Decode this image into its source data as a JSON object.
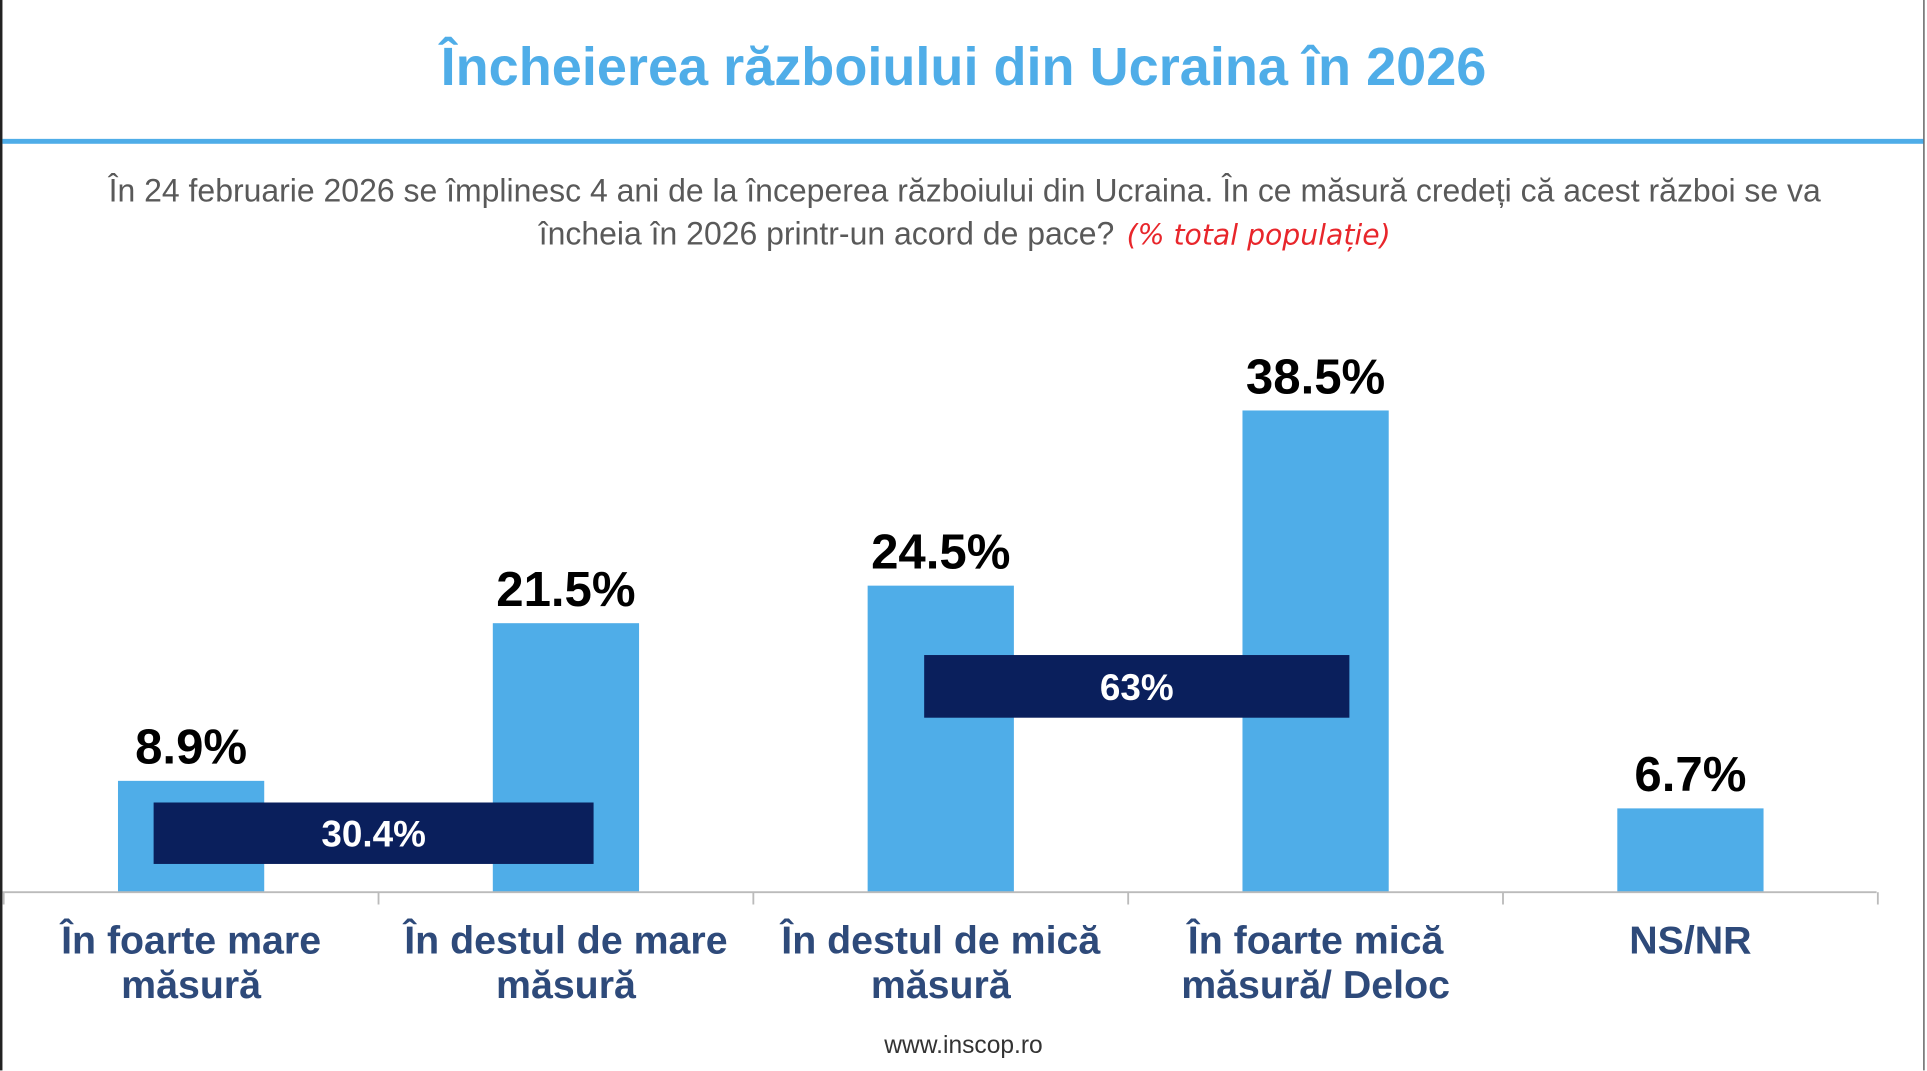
{
  "title": "Încheierea războiului din Ucraina în 2026",
  "subtitle": "În 24 februarie 2026 se împlinesc 4 ani de la începerea războiului din Ucraina. În ce măsură credeți că acest război se va încheia în 2026 printr-un acord de pace?",
  "note": "(% total populație)",
  "footer": "www.inscop.ro",
  "colors": {
    "bar": "#4FADE8",
    "group_box": "#0A1F5C",
    "title": "#4FADE8",
    "category_text": "#2E4A7A",
    "note": "#E8262B"
  },
  "chart_data": {
    "type": "bar",
    "categories": [
      [
        "În foarte mare",
        "măsură"
      ],
      [
        "În destul de mare",
        "măsură"
      ],
      [
        "În destul de mică",
        "măsură"
      ],
      [
        "În foarte mică",
        "măsură/ Deloc"
      ],
      [
        "NS/NR"
      ]
    ],
    "values": [
      8.9,
      21.5,
      24.5,
      38.5,
      6.7
    ],
    "value_labels": [
      "8.9%",
      "21.5%",
      "24.5%",
      "38.5%",
      "6.7%"
    ],
    "groups": [
      {
        "label": "30.4%",
        "value": 30.4,
        "covers": [
          0,
          1
        ]
      },
      {
        "label": "63%",
        "value": 63,
        "covers": [
          2,
          3
        ]
      }
    ],
    "ylim": [
      0,
      40
    ],
    "grid": false
  }
}
